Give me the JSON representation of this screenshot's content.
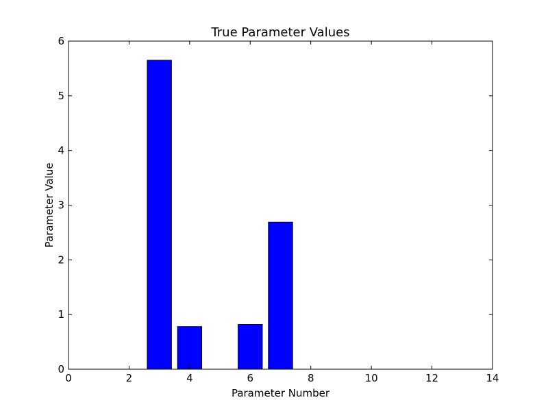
{
  "chart_data": {
    "type": "bar",
    "title": "True Parameter Values",
    "xlabel": "Parameter Number",
    "ylabel": "Parameter Value",
    "xlim": [
      0,
      14
    ],
    "ylim": [
      0,
      6
    ],
    "xticks": [
      "0",
      "2",
      "4",
      "6",
      "8",
      "10",
      "12",
      "14"
    ],
    "yticks": [
      "0",
      "1",
      "2",
      "3",
      "4",
      "5",
      "6"
    ],
    "bar_width": 0.8,
    "bars": [
      {
        "x": 1,
        "value": 0
      },
      {
        "x": 2,
        "value": 0
      },
      {
        "x": 3,
        "value": 5.65
      },
      {
        "x": 4,
        "value": 0.78
      },
      {
        "x": 5,
        "value": 0
      },
      {
        "x": 6,
        "value": 0.82
      },
      {
        "x": 7,
        "value": 2.69
      },
      {
        "x": 8,
        "value": 0
      },
      {
        "x": 9,
        "value": 0
      },
      {
        "x": 10,
        "value": 0
      },
      {
        "x": 11,
        "value": 0
      },
      {
        "x": 12,
        "value": 0
      },
      {
        "x": 13,
        "value": 0
      }
    ],
    "bar_color": "#0000ff",
    "edge_color": "#000000",
    "grid": false
  }
}
